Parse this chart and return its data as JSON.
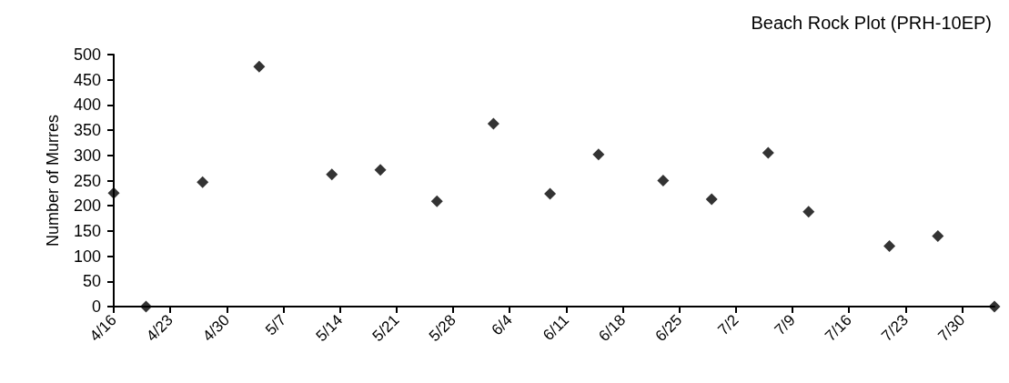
{
  "chart_data": {
    "type": "scatter",
    "title": "Beach Rock Plot (PRH-10EP)",
    "ylabel": "Number of Murres",
    "x": [
      "--04-16",
      "--04-20",
      "--04-27",
      "--05-04",
      "--05-13",
      "--05-19",
      "--05-26",
      "--06-02",
      "--06-09",
      "--06-15",
      "--06-23",
      "--06-29",
      "--07-06",
      "--07-11",
      "--07-21",
      "--07-27",
      "--08-03"
    ],
    "values": [
      225,
      0,
      247,
      476,
      262,
      271,
      209,
      363,
      224,
      302,
      250,
      213,
      305,
      188,
      120,
      140,
      0
    ],
    "color": "#000000",
    "marker": "diamond",
    "grid": false,
    "xlim": [
      "--04-16",
      "--08-03"
    ],
    "xticks": [
      {
        "value": "--04-16",
        "label": "4/16"
      },
      {
        "value": "--04-23",
        "label": "4/23"
      },
      {
        "value": "--04-30",
        "label": "4/30"
      },
      {
        "value": "--05-07",
        "label": "5/7"
      },
      {
        "value": "--05-14",
        "label": "5/14"
      },
      {
        "value": "--05-21",
        "label": "5/21"
      },
      {
        "value": "--05-28",
        "label": "5/28"
      },
      {
        "value": "--06-04",
        "label": "6/4"
      },
      {
        "value": "--06-11",
        "label": "6/11"
      },
      {
        "value": "--06-18",
        "label": "6/18"
      },
      {
        "value": "--06-25",
        "label": "6/25"
      },
      {
        "value": "--07-02",
        "label": "7/2"
      },
      {
        "value": "--07-09",
        "label": "7/9"
      },
      {
        "value": "--07-16",
        "label": "7/16"
      },
      {
        "value": "--07-23",
        "label": "7/23"
      },
      {
        "value": "--07-30",
        "label": "7/30"
      }
    ],
    "ylim": [
      0,
      500
    ],
    "yticks": [
      0,
      50,
      100,
      150,
      200,
      250,
      300,
      350,
      400,
      450,
      500
    ]
  }
}
